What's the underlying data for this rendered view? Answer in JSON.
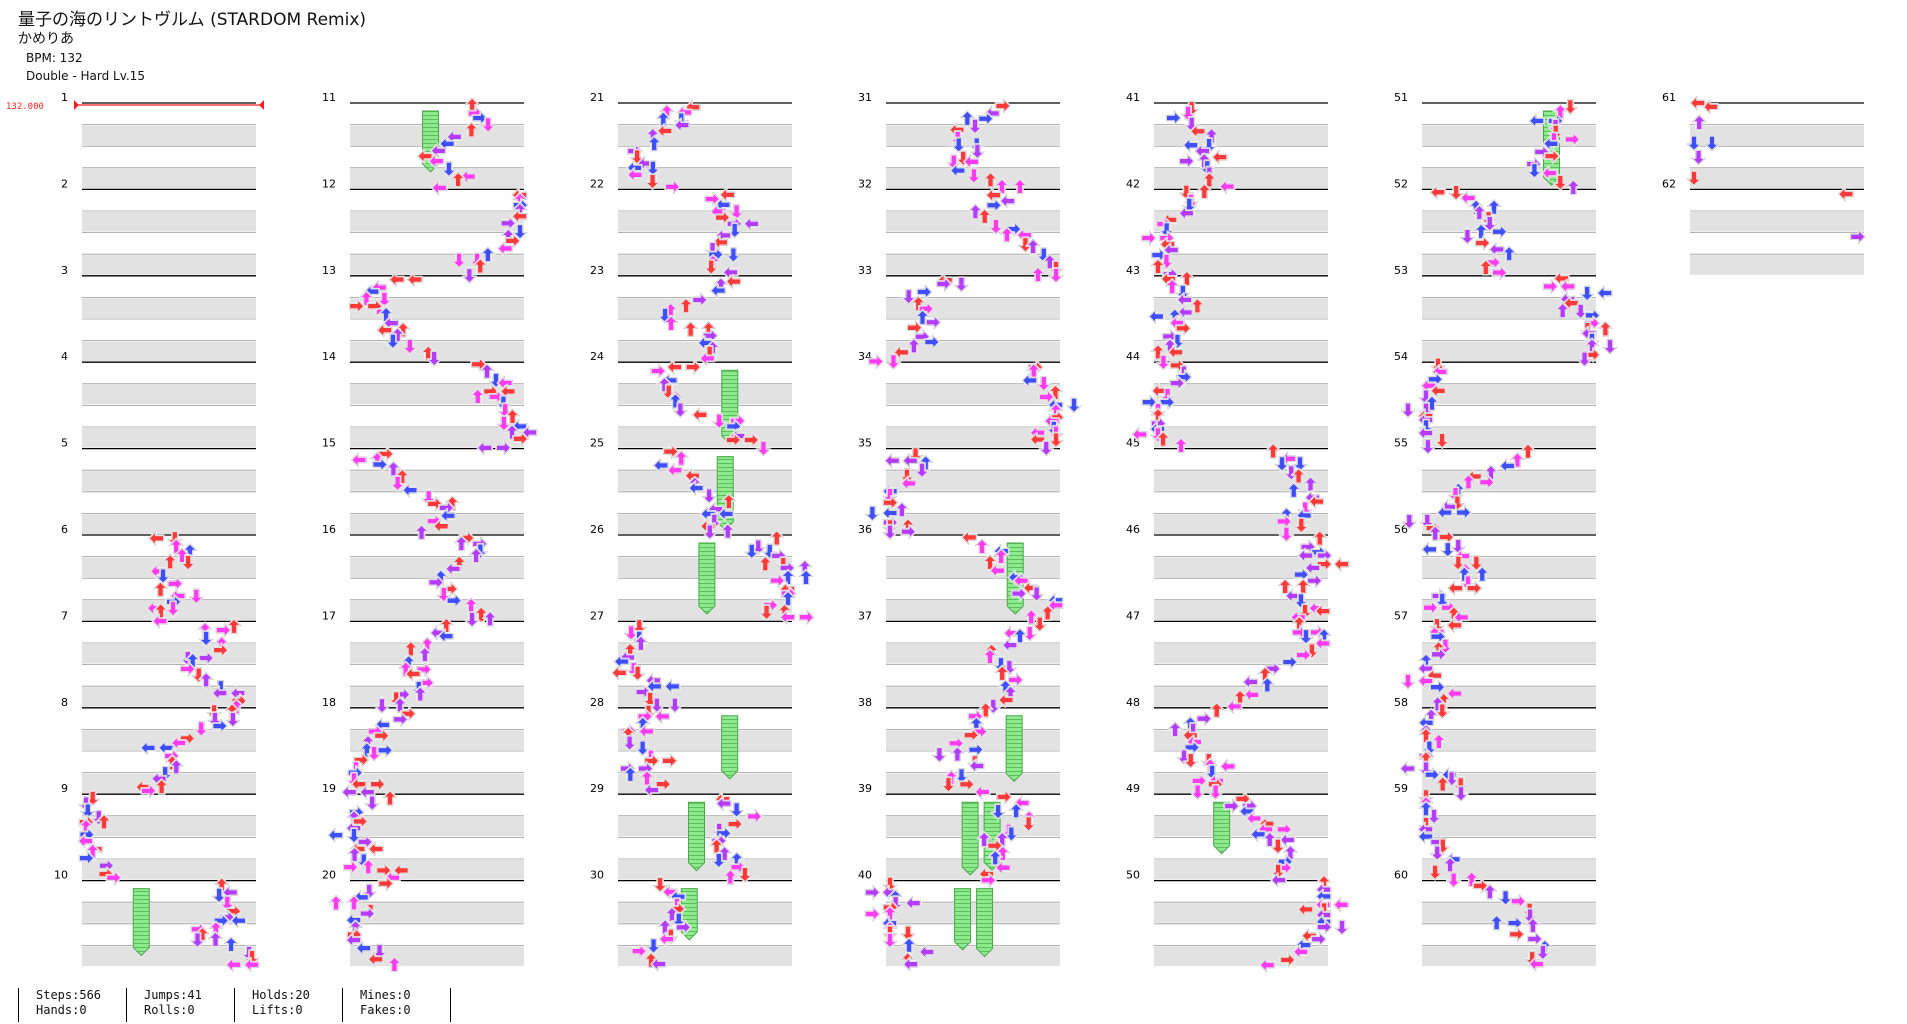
{
  "header": {
    "title": "量子の海のリントヴルム (STARDOM Remix)",
    "artist": "かめりあ",
    "bpm_text": "BPM: 132",
    "difficulty_text": "Double - Hard  Lv.15"
  },
  "bpm_marker": "132.000",
  "measure_numbers": [
    "1",
    "2",
    "3",
    "4",
    "5",
    "6",
    "7",
    "8",
    "9",
    "10",
    "11",
    "12",
    "13",
    "14",
    "15",
    "16",
    "17",
    "18",
    "19",
    "20",
    "21",
    "22",
    "23",
    "24",
    "25",
    "26",
    "27",
    "28",
    "29",
    "30",
    "31",
    "32",
    "33",
    "34",
    "35",
    "36",
    "37",
    "38",
    "39",
    "40",
    "41",
    "42",
    "43",
    "44",
    "45",
    "46",
    "47",
    "48",
    "49",
    "50",
    "51",
    "52",
    "53",
    "54",
    "55",
    "56",
    "57",
    "58",
    "59",
    "60",
    "61",
    "62"
  ],
  "colors": {
    "red": "#ff3a3a",
    "blue": "#3f4fff",
    "magenta": "#ff3cf0",
    "purple": "#b43cff",
    "hold": "#8fe98f",
    "lane_gray": "#e2e2e2",
    "bpm": "#ff2020"
  },
  "stats": [
    {
      "line1": "Steps:566",
      "line2": "Hands:0"
    },
    {
      "line1": "Jumps:41",
      "line2": "Rolls:0"
    },
    {
      "line1": "Holds:20",
      "line2": "Lifts:0"
    },
    {
      "line1": "Mines:0",
      "line2": "Fakes:0"
    }
  ]
}
